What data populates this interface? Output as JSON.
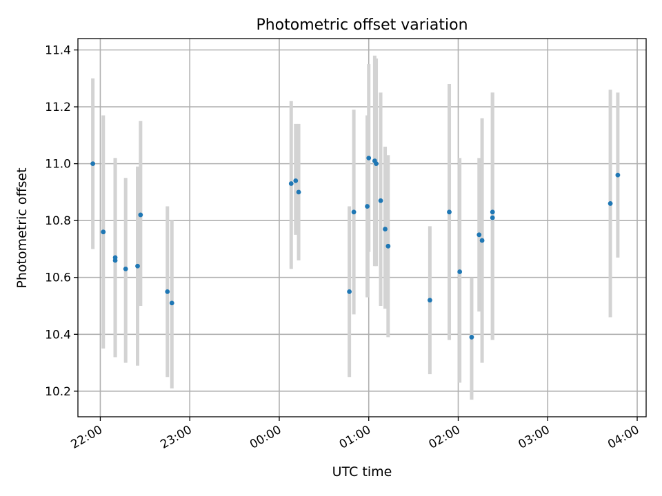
{
  "chart_data": {
    "type": "scatter",
    "title": "Photometric offset variation",
    "xlabel": "UTC time",
    "ylabel": "Photometric offset",
    "x_axis_type": "time",
    "xlim": [
      "21:45",
      "04:06"
    ],
    "ylim": [
      10.11,
      11.44
    ],
    "xticks": [
      "22:00",
      "23:00",
      "00:00",
      "01:00",
      "02:00",
      "03:00",
      "04:00"
    ],
    "yticks": [
      "10.2",
      "10.4",
      "10.6",
      "10.8",
      "11.0",
      "11.2",
      "11.4"
    ],
    "grid": true,
    "marker_color": "#1f77b4",
    "errorbar_color": "#d3d3d3",
    "points": [
      {
        "x": "21:55",
        "y": 11.0,
        "ylo": 10.7,
        "yhi": 11.3
      },
      {
        "x": "22:02",
        "y": 10.76,
        "ylo": 10.35,
        "yhi": 11.17
      },
      {
        "x": "22:10",
        "y": 10.67,
        "ylo": 10.32,
        "yhi": 11.02
      },
      {
        "x": "22:10",
        "y": 10.66,
        "ylo": 10.32,
        "yhi": 11.02
      },
      {
        "x": "22:17",
        "y": 10.63,
        "ylo": 10.3,
        "yhi": 10.95
      },
      {
        "x": "22:25",
        "y": 10.64,
        "ylo": 10.29,
        "yhi": 10.99
      },
      {
        "x": "22:27",
        "y": 10.82,
        "ylo": 10.5,
        "yhi": 11.15
      },
      {
        "x": "22:45",
        "y": 10.55,
        "ylo": 10.25,
        "yhi": 10.85
      },
      {
        "x": "22:48",
        "y": 10.51,
        "ylo": 10.21,
        "yhi": 10.8
      },
      {
        "x": "00:08",
        "y": 10.93,
        "ylo": 10.63,
        "yhi": 11.22
      },
      {
        "x": "00:11",
        "y": 10.94,
        "ylo": 10.75,
        "yhi": 11.14
      },
      {
        "x": "00:13",
        "y": 10.9,
        "ylo": 10.66,
        "yhi": 11.14
      },
      {
        "x": "00:47",
        "y": 10.55,
        "ylo": 10.25,
        "yhi": 10.85
      },
      {
        "x": "00:50",
        "y": 10.83,
        "ylo": 10.47,
        "yhi": 11.19
      },
      {
        "x": "00:59",
        "y": 10.85,
        "ylo": 10.53,
        "yhi": 11.17
      },
      {
        "x": "01:00",
        "y": 11.02,
        "ylo": 10.69,
        "yhi": 11.35
      },
      {
        "x": "01:04",
        "y": 11.01,
        "ylo": 10.64,
        "yhi": 11.38
      },
      {
        "x": "01:05",
        "y": 11.0,
        "ylo": 10.64,
        "yhi": 11.37
      },
      {
        "x": "01:08",
        "y": 10.87,
        "ylo": 10.5,
        "yhi": 11.25
      },
      {
        "x": "01:11",
        "y": 10.77,
        "ylo": 10.49,
        "yhi": 11.06
      },
      {
        "x": "01:13",
        "y": 10.71,
        "ylo": 10.39,
        "yhi": 11.03
      },
      {
        "x": "01:41",
        "y": 10.52,
        "ylo": 10.26,
        "yhi": 10.78
      },
      {
        "x": "01:54",
        "y": 10.83,
        "ylo": 10.38,
        "yhi": 11.28
      },
      {
        "x": "02:01",
        "y": 10.62,
        "ylo": 10.23,
        "yhi": 11.02
      },
      {
        "x": "02:09",
        "y": 10.39,
        "ylo": 10.17,
        "yhi": 10.6
      },
      {
        "x": "02:14",
        "y": 10.75,
        "ylo": 10.48,
        "yhi": 11.02
      },
      {
        "x": "02:16",
        "y": 10.73,
        "ylo": 10.3,
        "yhi": 11.16
      },
      {
        "x": "02:23",
        "y": 10.83,
        "ylo": 10.38,
        "yhi": 11.25
      },
      {
        "x": "02:23",
        "y": 10.81,
        "ylo": 10.38,
        "yhi": 11.25
      },
      {
        "x": "03:42",
        "y": 10.86,
        "ylo": 10.46,
        "yhi": 11.26
      },
      {
        "x": "03:47",
        "y": 10.96,
        "ylo": 10.67,
        "yhi": 11.25
      }
    ]
  }
}
